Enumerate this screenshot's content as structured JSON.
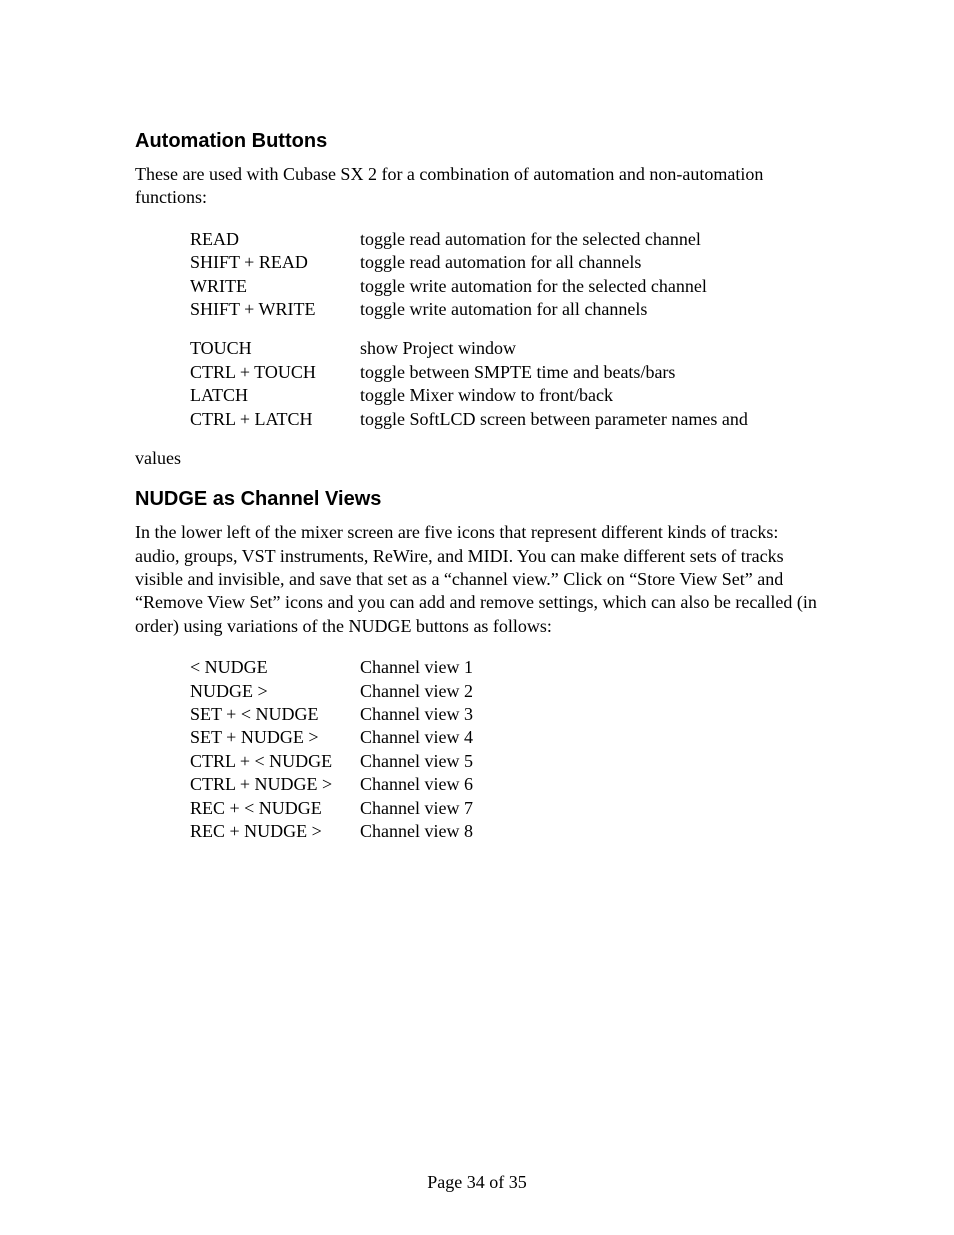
{
  "section1": {
    "heading": "Automation Buttons",
    "intro": "These are used with Cubase SX 2 for a combination of automation and non-automation functions:",
    "group1": [
      {
        "key": "READ",
        "desc": "toggle read automation for the selected channel"
      },
      {
        "key": "SHIFT + READ",
        "desc": "toggle read automation for all channels"
      },
      {
        "key": "WRITE",
        "desc": "toggle write automation for the selected channel"
      },
      {
        "key": "SHIFT + WRITE",
        "desc": "toggle write automation for all channels"
      }
    ],
    "group2": [
      {
        "key": "TOUCH",
        "desc": "show Project window"
      },
      {
        "key": "CTRL + TOUCH",
        "desc": "toggle between SMPTE time and beats/bars"
      },
      {
        "key": "LATCH",
        "desc": "toggle Mixer window to front/back"
      },
      {
        "key": "CTRL + LATCH",
        "desc": "toggle SoftLCD screen between parameter names and"
      }
    ],
    "trailing": "values"
  },
  "section2": {
    "heading": "NUDGE as Channel Views",
    "intro": "In the lower left of the mixer screen are five icons that represent different kinds of tracks: audio, groups, VST instruments, ReWire, and MIDI. You can make different sets of tracks visible and invisible, and save that set as a “channel view.” Click on “Store View Set” and “Remove View Set” icons and you can add and remove settings, which can also be recalled (in order) using variations of the NUDGE buttons as follows:",
    "rows": [
      {
        "key": "< NUDGE",
        "desc": "Channel view 1"
      },
      {
        "key": "NUDGE >",
        "desc": "Channel view 2"
      },
      {
        "key": "SET + < NUDGE",
        "desc": "Channel view 3"
      },
      {
        "key": "SET + NUDGE >",
        "desc": "Channel view 4"
      },
      {
        "key": "CTRL + < NUDGE",
        "desc": "Channel view 5"
      },
      {
        "key": "CTRL + NUDGE >",
        "desc": "Channel view 6"
      },
      {
        "key": "REC + < NUDGE",
        "desc": "Channel view 7"
      },
      {
        "key": "REC + NUDGE >",
        "desc": "Channel view 8"
      }
    ]
  },
  "footer": "Page 34 of 35"
}
